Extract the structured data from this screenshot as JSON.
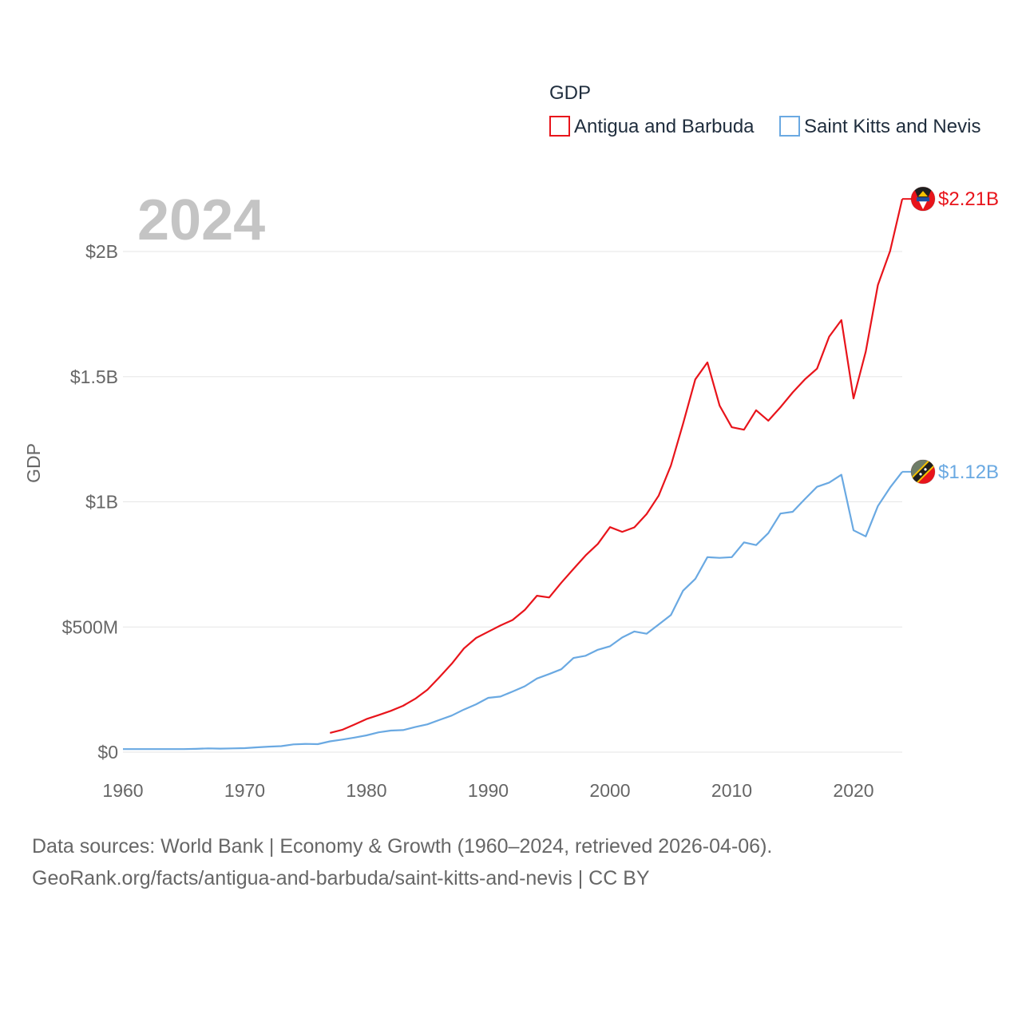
{
  "chart_data": {
    "type": "line",
    "title": "GDP",
    "highlight_year_label": "2024",
    "xlabel": "",
    "ylabel": "GDP",
    "xlim": [
      1960,
      2024
    ],
    "ylim": [
      0,
      2300000000
    ],
    "x_ticks": [
      1960,
      1970,
      1980,
      1990,
      2000,
      2010,
      2020
    ],
    "x_tick_labels": [
      "1960",
      "1970",
      "1980",
      "1990",
      "2000",
      "2010",
      "2020"
    ],
    "y_ticks": [
      0,
      500000000,
      1000000000,
      1500000000,
      2000000000
    ],
    "y_tick_labels": [
      "$0",
      "$500M",
      "$1B",
      "$1.5B",
      "$2B"
    ],
    "legend_position": "top-right",
    "series": [
      {
        "name": "Antigua and Barbuda",
        "color": "#e8141b",
        "end_label": "$2.21B",
        "flag_icon": "antigua-and-barbuda-flag-icon",
        "x": [
          1977,
          1978,
          1979,
          1980,
          1981,
          1982,
          1983,
          1984,
          1985,
          1986,
          1987,
          1988,
          1989,
          1990,
          1991,
          1992,
          1993,
          1994,
          1995,
          1996,
          1997,
          1998,
          1999,
          2000,
          2001,
          2002,
          2003,
          2004,
          2005,
          2006,
          2007,
          2008,
          2009,
          2010,
          2011,
          2012,
          2013,
          2014,
          2015,
          2016,
          2017,
          2018,
          2019,
          2020,
          2021,
          2022,
          2023,
          2024
        ],
        "values": [
          77000000,
          89000000,
          110000000,
          132000000,
          148000000,
          165000000,
          185000000,
          213000000,
          249000000,
          300000000,
          353000000,
          414000000,
          456000000,
          481000000,
          506000000,
          528000000,
          568000000,
          625000000,
          618000000,
          677000000,
          732000000,
          786000000,
          832000000,
          899000000,
          880000000,
          898000000,
          951000000,
          1025000000,
          1145000000,
          1312000000,
          1489000000,
          1557000000,
          1384000000,
          1298000000,
          1288000000,
          1366000000,
          1324000000,
          1378000000,
          1437000000,
          1489000000,
          1532000000,
          1660000000,
          1726000000,
          1413000000,
          1600000000,
          1866000000,
          2002000000,
          2210000000
        ]
      },
      {
        "name": "Saint Kitts and Nevis",
        "color": "#6aa9e2",
        "end_label": "$1.12B",
        "flag_icon": "saint-kitts-and-nevis-flag-icon",
        "x": [
          1960,
          1961,
          1962,
          1963,
          1964,
          1965,
          1966,
          1967,
          1968,
          1969,
          1970,
          1971,
          1972,
          1973,
          1974,
          1975,
          1976,
          1977,
          1978,
          1979,
          1980,
          1981,
          1982,
          1983,
          1984,
          1985,
          1986,
          1987,
          1988,
          1989,
          1990,
          1991,
          1992,
          1993,
          1994,
          1995,
          1996,
          1997,
          1998,
          1999,
          2000,
          2001,
          2002,
          2003,
          2004,
          2005,
          2006,
          2007,
          2008,
          2009,
          2010,
          2011,
          2012,
          2013,
          2014,
          2015,
          2016,
          2017,
          2018,
          2019,
          2020,
          2021,
          2022,
          2023,
          2024
        ],
        "values": [
          12000000,
          12000000,
          12000000,
          12000000,
          12000000,
          12000000,
          13000000,
          15000000,
          14000000,
          15000000,
          16000000,
          19000000,
          22000000,
          24000000,
          31000000,
          33000000,
          32000000,
          43000000,
          50000000,
          58000000,
          67000000,
          79000000,
          86000000,
          88000000,
          100000000,
          111000000,
          129000000,
          146000000,
          170000000,
          191000000,
          217000000,
          222000000,
          242000000,
          263000000,
          294000000,
          312000000,
          331000000,
          376000000,
          385000000,
          409000000,
          423000000,
          458000000,
          482000000,
          473000000,
          510000000,
          548000000,
          645000000,
          692000000,
          779000000,
          776000000,
          779000000,
          838000000,
          827000000,
          875000000,
          953000000,
          960000000,
          1011000000,
          1060000000,
          1077000000,
          1108000000,
          886000000,
          862000000,
          983000000,
          1057000000,
          1120000000
        ]
      }
    ]
  },
  "footer": {
    "source_line": "Data sources: World Bank | Economy & Growth (1960–2024, retrieved 2026-04-06).",
    "url_line": "GeoRank.org/facts/antigua-and-barbuda/saint-kitts-and-nevis | CC BY"
  }
}
